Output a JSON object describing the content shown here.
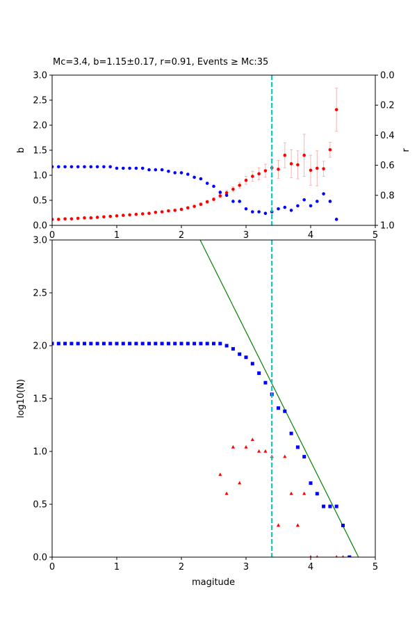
{
  "chart_data": [
    {
      "type": "scatter",
      "title": "Mc=3.4, b=1.15±0.17, r=0.91, Events ≥ Mc:35",
      "ylabel": "b",
      "y2label": "r",
      "xlim": [
        0,
        5
      ],
      "xticks": [
        0,
        1,
        2,
        3,
        4,
        5
      ],
      "ylim": [
        0,
        3
      ],
      "yticks": [
        {
          "value": 0,
          "label": "0.0"
        },
        {
          "value": 0.5,
          "label": "0.5"
        },
        {
          "value": 1,
          "label": "1.0"
        },
        {
          "value": 1.5,
          "label": "1.5"
        },
        {
          "value": 2,
          "label": "2.0"
        },
        {
          "value": 2.5,
          "label": "2.5"
        },
        {
          "value": 3,
          "label": "3.0"
        }
      ],
      "y2lim": [
        1,
        0
      ],
      "y2ticks": [
        {
          "value": 0,
          "label": "0.0"
        },
        {
          "value": 0.2,
          "label": "0.2"
        },
        {
          "value": 0.4,
          "label": "0.4"
        },
        {
          "value": 0.6,
          "label": "0.6"
        },
        {
          "value": 0.8,
          "label": "0.8"
        },
        {
          "value": 1,
          "label": "1.0"
        }
      ],
      "vline": 3.4,
      "vline_color": "#17bfbf",
      "series": [
        {
          "color": "#ff0000",
          "marker": "circle",
          "error_color": "#f5b5b5",
          "x": [
            0,
            0.1,
            0.2,
            0.3,
            0.4,
            0.5,
            0.6,
            0.7,
            0.8,
            0.9,
            1,
            1.1,
            1.2,
            1.3,
            1.4,
            1.5,
            1.6,
            1.7,
            1.8,
            1.9,
            2,
            2.1,
            2.2,
            2.3,
            2.4,
            2.5,
            2.6,
            2.7,
            2.8,
            2.9,
            3,
            3.1,
            3.2,
            3.3,
            3.4,
            3.5,
            3.6,
            3.7,
            3.8,
            3.9,
            4,
            4.1,
            4.2,
            4.3,
            4.4
          ],
          "values": [
            0.12,
            0.12,
            0.13,
            0.13,
            0.14,
            0.15,
            0.15,
            0.16,
            0.17,
            0.18,
            0.19,
            0.2,
            0.21,
            0.22,
            0.23,
            0.24,
            0.26,
            0.27,
            0.29,
            0.3,
            0.32,
            0.35,
            0.38,
            0.42,
            0.47,
            0.52,
            0.59,
            0.65,
            0.72,
            0.8,
            0.9,
            0.98,
            1.03,
            1.09,
            1.15,
            1.12,
            1.4,
            1.23,
            1.21,
            1.4,
            1.1,
            1.14,
            1.13,
            1.51,
            2.31
          ],
          "errors": [
            0.01,
            0.01,
            0.01,
            0.01,
            0.01,
            0.01,
            0.01,
            0.01,
            0.01,
            0.01,
            0.01,
            0.01,
            0.01,
            0.01,
            0.01,
            0.01,
            0.01,
            0.01,
            0.02,
            0.02,
            0.02,
            0.02,
            0.02,
            0.03,
            0.03,
            0.03,
            0.04,
            0.05,
            0.05,
            0.06,
            0.08,
            0.1,
            0.12,
            0.13,
            0.17,
            0.18,
            0.25,
            0.28,
            0.28,
            0.42,
            0.3,
            0.35,
            0.15,
            0.15,
            0.43
          ]
        },
        {
          "color": "#0000ff",
          "marker": "circle",
          "axis": "y2",
          "x": [
            0,
            0.1,
            0.2,
            0.3,
            0.4,
            0.5,
            0.6,
            0.7,
            0.8,
            0.9,
            1,
            1.1,
            1.2,
            1.3,
            1.4,
            1.5,
            1.6,
            1.7,
            1.8,
            1.9,
            2,
            2.1,
            2.2,
            2.3,
            2.4,
            2.5,
            2.6,
            2.7,
            2.8,
            2.9,
            3,
            3.1,
            3.2,
            3.3,
            3.4,
            3.5,
            3.6,
            3.7,
            3.8,
            3.9,
            4,
            4.1,
            4.2,
            4.3,
            4.4
          ],
          "values": [
            0.61,
            0.61,
            0.61,
            0.61,
            0.61,
            0.61,
            0.61,
            0.61,
            0.61,
            0.61,
            0.62,
            0.62,
            0.62,
            0.62,
            0.62,
            0.63,
            0.63,
            0.63,
            0.64,
            0.65,
            0.65,
            0.66,
            0.68,
            0.69,
            0.72,
            0.74,
            0.78,
            0.8,
            0.84,
            0.84,
            0.89,
            0.91,
            0.91,
            0.92,
            0.91,
            0.89,
            0.88,
            0.9,
            0.87,
            0.83,
            0.87,
            0.84,
            0.79,
            0.84,
            0.96
          ]
        }
      ]
    },
    {
      "type": "scatter",
      "xlabel": "magitude",
      "ylabel": "log10(N)",
      "xlim": [
        0,
        5
      ],
      "xticks": [
        0,
        1,
        2,
        3,
        4,
        5
      ],
      "ylim": [
        0,
        3
      ],
      "yticks": [
        {
          "value": 0,
          "label": "0.0"
        },
        {
          "value": 0.5,
          "label": "0.5"
        },
        {
          "value": 1,
          "label": "1.0"
        },
        {
          "value": 1.5,
          "label": "1.5"
        },
        {
          "value": 2,
          "label": "2.0"
        },
        {
          "value": 2.5,
          "label": "2.5"
        },
        {
          "value": 3,
          "label": "3.0"
        }
      ],
      "vline": 3.4,
      "vline_color": "#17bfbf",
      "series": [
        {
          "color": "#008000",
          "marker": "line",
          "x": [
            2.29,
            4.74
          ],
          "values": [
            3,
            0
          ]
        },
        {
          "color": "#0000ff",
          "marker": "square",
          "x": [
            0,
            0.1,
            0.2,
            0.3,
            0.4,
            0.5,
            0.6,
            0.7,
            0.8,
            0.9,
            1,
            1.1,
            1.2,
            1.3,
            1.4,
            1.5,
            1.6,
            1.7,
            1.8,
            1.9,
            2,
            2.1,
            2.2,
            2.3,
            2.4,
            2.5,
            2.6,
            2.7,
            2.8,
            2.9,
            3,
            3.1,
            3.2,
            3.3,
            3.4,
            3.5,
            3.6,
            3.7,
            3.8,
            3.9,
            4,
            4.1,
            4.2,
            4.3,
            4.4,
            4.5,
            4.6
          ],
          "values": [
            2.02,
            2.02,
            2.02,
            2.02,
            2.02,
            2.02,
            2.02,
            2.02,
            2.02,
            2.02,
            2.02,
            2.02,
            2.02,
            2.02,
            2.02,
            2.02,
            2.02,
            2.02,
            2.02,
            2.02,
            2.02,
            2.02,
            2.02,
            2.02,
            2.02,
            2.02,
            2.02,
            2.0,
            1.97,
            1.92,
            1.89,
            1.83,
            1.74,
            1.65,
            1.54,
            1.41,
            1.38,
            1.17,
            1.04,
            0.95,
            0.7,
            0.6,
            0.48,
            0.48,
            0.48,
            0.3,
            0
          ]
        },
        {
          "color": "#ff0000",
          "marker": "triangle",
          "x": [
            2.6,
            2.7,
            2.8,
            2.9,
            3,
            3.1,
            3.2,
            3.3,
            3.4,
            3.5,
            3.6,
            3.7,
            3.8,
            3.9,
            4,
            4.1,
            4.4,
            4.5
          ],
          "values": [
            0.78,
            0.6,
            1.04,
            0.7,
            1.04,
            1.11,
            1.0,
            1.0,
            0.95,
            0.3,
            0.95,
            0.6,
            0.3,
            0.6,
            0,
            0,
            0,
            0
          ]
        }
      ]
    }
  ]
}
